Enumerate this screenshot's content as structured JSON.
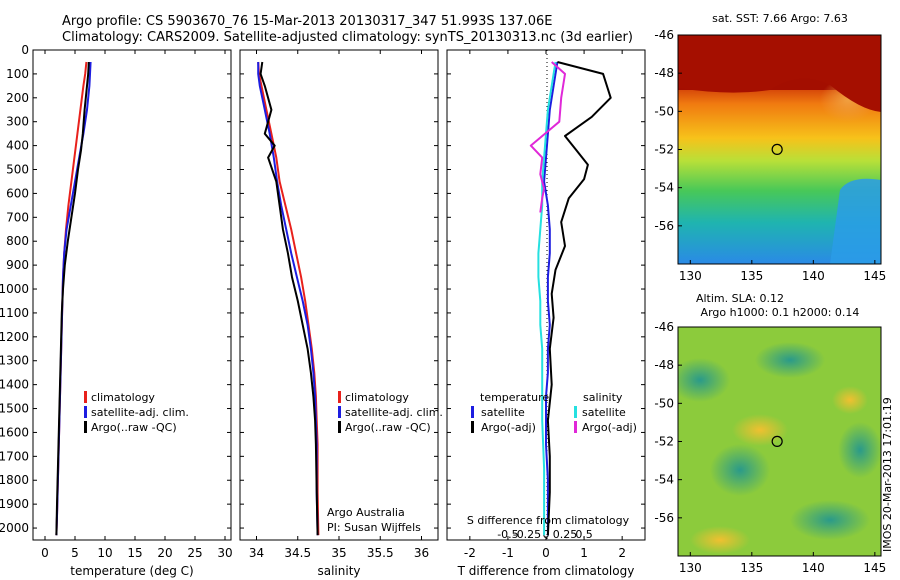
{
  "title": {
    "line1": "Argo profile: CS 5903670_76 15-Mar-2013 20130317_347 51.993S 137.06E",
    "line2": "Climatology: CARS2009. Satellite-adjusted climatology: synTS_20130313.nc (3d earlier)"
  },
  "colors": {
    "climatology": "#e8211c",
    "satellite": "#1d1de0",
    "argo": "#000000",
    "sat_salinity": "#25e0e0",
    "argo_salinity": "#e028d8"
  },
  "legend": {
    "climatology": "climatology",
    "satellite_adj": "satellite-adj. clim.",
    "argo_raw": "Argo(..raw -QC)",
    "diff_temperature": "temperature",
    "diff_salinity": "salinity",
    "satellite": "satellite",
    "argo_adj": "Argo(-adj)"
  },
  "annotations": {
    "argo_australia": "Argo Australia",
    "pi": "PI: Susan Wijffels",
    "s_diff_label": "S difference from climatology",
    "imos_stamp": "IMOS 20-Mar-2013 17:01:19"
  },
  "sst_map_title": "sat. SST: 7.66  Argo: 7.63",
  "sla_map_title": {
    "line1": "Altim. SLA: 0.12",
    "line2": "Argo h1000: 0.1  h2000: 0.14"
  },
  "chart_data": [
    {
      "type": "line",
      "panel": "temperature",
      "xlabel": "temperature (deg C)",
      "ylim": [
        2050,
        0
      ],
      "xlim": [
        -2,
        31
      ],
      "xticks": [
        0,
        5,
        10,
        15,
        20,
        25,
        30
      ],
      "yticks": [
        0,
        100,
        200,
        300,
        400,
        500,
        600,
        700,
        800,
        900,
        1000,
        1100,
        1200,
        1300,
        1400,
        1500,
        1600,
        1700,
        1800,
        1900,
        2000
      ],
      "series": [
        {
          "name": "climatology",
          "color_key": "climatology",
          "x": [
            6.9,
            6.7,
            6.4,
            5.9,
            5.4,
            4.9,
            4.4,
            3.9,
            3.5,
            3.2,
            3.0,
            2.9,
            2.8,
            2.7,
            2.6,
            2.5,
            2.4,
            2.3,
            2.2,
            2.1,
            2.0,
            1.9
          ],
          "y": [
            50,
            100,
            150,
            250,
            350,
            450,
            550,
            650,
            750,
            850,
            950,
            1050,
            1150,
            1250,
            1350,
            1450,
            1550,
            1650,
            1750,
            1850,
            1950,
            2030
          ]
        },
        {
          "name": "satellite-adj. clim.",
          "color_key": "satellite",
          "x": [
            7.6,
            7.5,
            7.4,
            7.0,
            6.4,
            5.7,
            5.0,
            4.3,
            3.6,
            3.2,
            3.0,
            2.9,
            2.8,
            2.7,
            2.6,
            2.5,
            2.4,
            2.3,
            2.2,
            2.1,
            2.0,
            1.9
          ],
          "y": [
            50,
            100,
            150,
            250,
            350,
            450,
            550,
            650,
            750,
            850,
            950,
            1050,
            1150,
            1250,
            1350,
            1450,
            1550,
            1650,
            1750,
            1850,
            1950,
            2030
          ]
        },
        {
          "name": "Argo(..raw -QC)",
          "color_key": "argo",
          "x": [
            7.3,
            7.2,
            7.0,
            6.6,
            6.3,
            6.0,
            5.5,
            5.0,
            4.4,
            3.8,
            3.3,
            3.0,
            2.8,
            2.7,
            2.6,
            2.5,
            2.4,
            2.3,
            2.2,
            2.1,
            2.0,
            1.9
          ],
          "y": [
            50,
            100,
            150,
            250,
            350,
            420,
            500,
            600,
            700,
            800,
            900,
            1000,
            1100,
            1200,
            1300,
            1400,
            1500,
            1600,
            1700,
            1800,
            1900,
            2030
          ]
        }
      ]
    },
    {
      "type": "line",
      "panel": "salinity",
      "xlabel": "salinity",
      "ylim": [
        2050,
        0
      ],
      "xlim": [
        33.8,
        36.2
      ],
      "xticks": [
        34,
        34.5,
        35,
        35.5,
        36
      ],
      "series": [
        {
          "name": "climatology",
          "color_key": "climatology",
          "x": [
            34.02,
            34.03,
            34.06,
            34.12,
            34.18,
            34.24,
            34.28,
            34.35,
            34.42,
            34.48,
            34.54,
            34.59,
            34.63,
            34.67,
            34.7,
            34.72,
            34.73,
            34.74,
            34.74,
            34.74,
            34.75
          ],
          "y": [
            50,
            100,
            150,
            250,
            350,
            450,
            550,
            650,
            750,
            850,
            950,
            1050,
            1150,
            1250,
            1350,
            1450,
            1550,
            1650,
            1750,
            1850,
            2030
          ]
        },
        {
          "name": "satellite-adj. clim.",
          "color_key": "satellite",
          "x": [
            34.02,
            34.02,
            34.04,
            34.1,
            34.16,
            34.21,
            34.25,
            34.3,
            34.36,
            34.42,
            34.49,
            34.56,
            34.62,
            34.66,
            34.69,
            34.71,
            34.72,
            34.73,
            34.73,
            34.73,
            34.74
          ],
          "y": [
            50,
            100,
            150,
            250,
            350,
            450,
            550,
            650,
            750,
            850,
            950,
            1050,
            1150,
            1250,
            1350,
            1450,
            1550,
            1650,
            1750,
            1850,
            2030
          ]
        },
        {
          "name": "Argo(..raw -QC)",
          "color_key": "argo",
          "x": [
            34.07,
            34.05,
            34.1,
            34.18,
            34.1,
            34.22,
            34.14,
            34.24,
            34.28,
            34.32,
            34.38,
            34.43,
            34.5,
            34.56,
            34.62,
            34.66,
            34.69,
            34.71,
            34.72,
            34.73,
            34.74
          ],
          "y": [
            50,
            100,
            150,
            250,
            350,
            400,
            450,
            550,
            650,
            750,
            850,
            950,
            1050,
            1150,
            1250,
            1350,
            1450,
            1550,
            1650,
            1850,
            2030
          ]
        }
      ]
    },
    {
      "type": "line",
      "panel": "difference",
      "xlabel": "T difference from climatology",
      "ylim": [
        2050,
        0
      ],
      "xlim": [
        -2.6,
        2.6
      ],
      "xticks": [
        -2,
        -1,
        0,
        1,
        2
      ],
      "secondary_xticks": [
        "-0.5",
        "-0.25",
        "0",
        "0.25",
        "0.5"
      ],
      "series": [
        {
          "name": "temperature satellite",
          "color_key": "satellite",
          "x": [
            0.3,
            0.2,
            0.1,
            0.05,
            0.0,
            -0.05,
            0.05,
            0.1,
            0.1,
            0.05,
            0.05,
            0.1,
            0.05,
            0.05,
            0.0,
            0.0,
            0.0,
            0.05,
            0.05
          ],
          "y": [
            50,
            150,
            250,
            350,
            450,
            550,
            650,
            750,
            850,
            950,
            1050,
            1150,
            1250,
            1350,
            1450,
            1550,
            1650,
            1800,
            2030
          ]
        },
        {
          "name": "temperature Argo(-adj)",
          "color_key": "argo",
          "x": [
            0.3,
            1.5,
            1.7,
            1.2,
            0.5,
            0.8,
            1.1,
            1.0,
            0.6,
            0.4,
            0.5,
            0.25,
            0.15,
            0.2,
            0.1,
            0.15,
            0.05,
            0.1,
            0.1,
            0.05
          ],
          "y": [
            50,
            100,
            200,
            280,
            360,
            420,
            480,
            540,
            620,
            720,
            820,
            920,
            1020,
            1120,
            1250,
            1400,
            1550,
            1700,
            1850,
            2030
          ]
        },
        {
          "name": "salinity satellite",
          "color_key": "sat_salinity",
          "x": [
            0.25,
            0.15,
            0.05,
            0.0,
            -0.05,
            -0.1,
            -0.1,
            -0.15,
            -0.2,
            -0.2,
            -0.15,
            -0.15,
            -0.1,
            -0.1,
            -0.1,
            -0.1,
            -0.05,
            -0.05
          ],
          "y": [
            50,
            150,
            250,
            350,
            450,
            550,
            650,
            750,
            850,
            950,
            1050,
            1150,
            1250,
            1350,
            1450,
            1550,
            1750,
            2030
          ]
        },
        {
          "name": "salinity Argo(-adj)",
          "color_key": "argo_salinity",
          "x": [
            0.15,
            0.5,
            0.4,
            0.35,
            -0.4,
            -0.1,
            -0.15,
            -0.05,
            -0.1,
            -0.15
          ],
          "y": [
            50,
            100,
            200,
            300,
            400,
            450,
            520,
            580,
            620,
            680
          ]
        }
      ]
    }
  ],
  "maps": [
    {
      "type": "heatmap",
      "name": "sst",
      "xlim": [
        129,
        145.5
      ],
      "ylim": [
        -58,
        -46
      ],
      "xticks": [
        130,
        135,
        140,
        145
      ],
      "yticks": [
        -46,
        -48,
        -50,
        -52,
        -54,
        -56
      ],
      "marker": {
        "lon": 137.06,
        "lat": -51.993
      }
    },
    {
      "type": "heatmap",
      "name": "sla",
      "xlim": [
        129,
        145.5
      ],
      "ylim": [
        -58,
        -46
      ],
      "xticks": [
        130,
        135,
        140,
        145
      ],
      "yticks": [
        -46,
        -48,
        -50,
        -52,
        -54,
        -56
      ],
      "marker": {
        "lon": 137.06,
        "lat": -51.993
      }
    }
  ]
}
